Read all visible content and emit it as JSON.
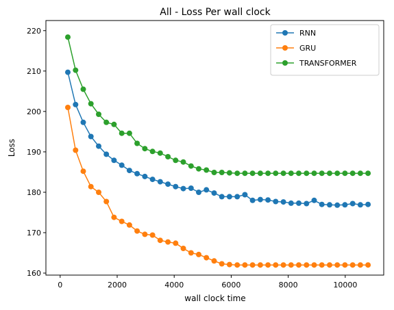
{
  "chart_data": {
    "type": "line",
    "title": "All - Loss Per wall clock",
    "xlabel": "wall clock time",
    "ylabel": "Loss",
    "xlim": [
      -500,
      11350
    ],
    "ylim": [
      159.5,
      222.5
    ],
    "xticks": [
      0,
      2000,
      4000,
      6000,
      8000,
      10000
    ],
    "yticks": [
      160,
      170,
      180,
      190,
      200,
      210,
      220
    ],
    "grid": false,
    "legend_position": "top-right",
    "x": [
      270,
      540,
      810,
      1080,
      1350,
      1620,
      1890,
      2160,
      2430,
      2700,
      2970,
      3240,
      3510,
      3780,
      4050,
      4320,
      4590,
      4860,
      5130,
      5400,
      5670,
      5940,
      6210,
      6480,
      6750,
      7020,
      7290,
      7560,
      7830,
      8100,
      8370,
      8640,
      8910,
      9180,
      9450,
      9720,
      9990,
      10260,
      10530,
      10800
    ],
    "series": [
      {
        "name": "RNN",
        "color": "#1f77b4",
        "values": [
          209.7,
          201.7,
          197.3,
          193.8,
          191.4,
          189.4,
          187.9,
          186.7,
          185.4,
          184.6,
          183.9,
          183.2,
          182.6,
          182.0,
          181.4,
          180.9,
          181.0,
          180.0,
          180.6,
          179.8,
          178.9,
          178.9,
          178.9,
          179.4,
          178.0,
          178.2,
          178.1,
          177.7,
          177.6,
          177.3,
          177.3,
          177.2,
          178.0,
          177.0,
          176.9,
          176.8,
          176.9,
          177.2,
          176.9,
          177.0
        ]
      },
      {
        "name": "GRU",
        "color": "#ff7f0e",
        "values": [
          201.0,
          190.4,
          185.2,
          181.4,
          180.0,
          177.7,
          173.8,
          172.8,
          171.9,
          170.4,
          169.6,
          169.4,
          168.1,
          167.7,
          167.4,
          166.1,
          165.0,
          164.6,
          163.8,
          163.0,
          162.3,
          162.1,
          162.0,
          162.0,
          162.0,
          162.0,
          162.0,
          162.0,
          162.0,
          162.0,
          162.0,
          162.0,
          162.0,
          162.0,
          162.0,
          162.0,
          162.0,
          162.0,
          162.0,
          162.0
        ]
      },
      {
        "name": "TRANSFORMER",
        "color": "#2ca02c",
        "values": [
          218.4,
          210.2,
          205.5,
          201.9,
          199.3,
          197.3,
          196.8,
          194.6,
          194.6,
          192.1,
          190.8,
          190.1,
          189.7,
          188.8,
          187.9,
          187.5,
          186.5,
          185.8,
          185.5,
          184.9,
          184.9,
          184.8,
          184.7,
          184.7,
          184.7,
          184.7,
          184.7,
          184.7,
          184.7,
          184.7,
          184.7,
          184.7,
          184.7,
          184.7,
          184.7,
          184.7,
          184.7,
          184.7,
          184.7,
          184.7
        ]
      }
    ]
  }
}
